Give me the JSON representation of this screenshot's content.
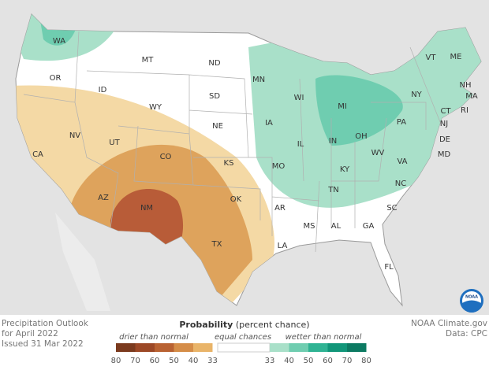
{
  "map": {
    "states": [
      "WA",
      "OR",
      "CA",
      "NV",
      "ID",
      "MT",
      "WY",
      "UT",
      "AZ",
      "CO",
      "NM",
      "ND",
      "SD",
      "NE",
      "KS",
      "OK",
      "TX",
      "MN",
      "IA",
      "MO",
      "AR",
      "LA",
      "WI",
      "IL",
      "MS",
      "MI",
      "IN",
      "KY",
      "TN",
      "AL",
      "GA",
      "FL",
      "OH",
      "WV",
      "VA",
      "NC",
      "SC",
      "PA",
      "NY",
      "VT",
      "ME",
      "NH",
      "MA",
      "RI",
      "CT",
      "NJ",
      "DE",
      "MD"
    ],
    "caption": [
      "Precipitation Outlook",
      "for April 2022",
      "Issued 31 Mar 2022"
    ],
    "credit": [
      "NOAA Climate.gov",
      "Data: CPC"
    ],
    "logo_text": "NOAA",
    "legend": {
      "title_bold": "Probability",
      "title_rest": "(percent chance)",
      "drier_label": "drier than normal",
      "equal_label": "equal chances",
      "wetter_label": "wetter than normal",
      "drier_ticks": [
        80,
        70,
        60,
        50,
        40,
        33
      ],
      "wetter_ticks": [
        33,
        40,
        50,
        60,
        70,
        80
      ],
      "drier_colors": [
        "#7b3a1e",
        "#9c4826",
        "#b96232",
        "#d58d48",
        "#e9b469",
        "#f4d9a5"
      ],
      "wetter_colors": [
        "#a9e0c9",
        "#6fcdb0",
        "#2fb393",
        "#119679",
        "#0c7a62",
        "#085c4b"
      ]
    }
  }
}
